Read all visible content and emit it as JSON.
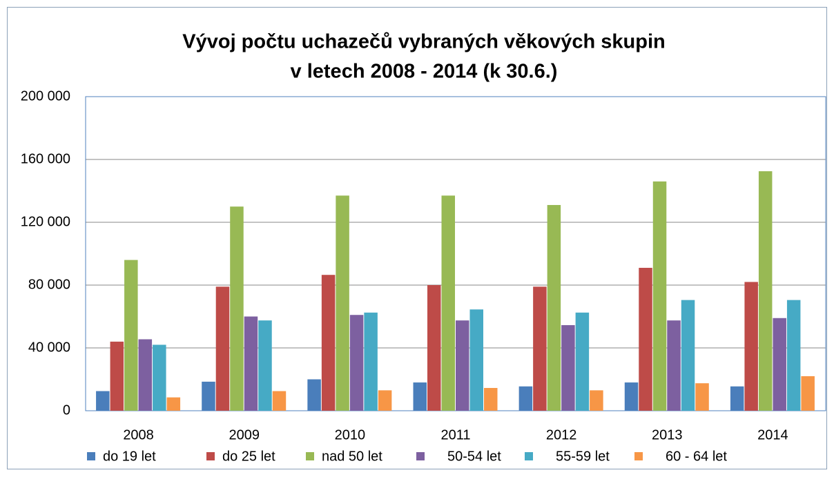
{
  "chart_data": {
    "type": "bar",
    "title": [
      "Vývoj počtu uchazečů vybraných věkových skupin",
      "v letech 2008 - 2014 (k 30.6.)"
    ],
    "categories": [
      "2008",
      "2009",
      "2010",
      "2011",
      "2012",
      "2013",
      "2014"
    ],
    "series": [
      {
        "name": "do 19 let",
        "color": "#4a7ebb",
        "values": [
          12500,
          18500,
          20000,
          18000,
          15500,
          18000,
          15500
        ]
      },
      {
        "name": "do 25 let",
        "color": "#be4b48",
        "values": [
          44000,
          79000,
          86500,
          80000,
          79000,
          91000,
          82000
        ]
      },
      {
        "name": "nad 50 let",
        "color": "#98b954",
        "values": [
          96000,
          130000,
          137000,
          137000,
          131000,
          146000,
          152500
        ]
      },
      {
        "name": "50-54 let",
        "color": "#7d60a0",
        "values": [
          45500,
          60000,
          61000,
          57500,
          54500,
          57500,
          59000
        ]
      },
      {
        "name": "55-59 let",
        "color": "#46aac5",
        "values": [
          42000,
          57500,
          62500,
          64500,
          62500,
          70500,
          70500
        ]
      },
      {
        "name": "60 - 64 let",
        "color": "#f79646",
        "values": [
          8500,
          12500,
          13000,
          14500,
          13000,
          17500,
          22000
        ]
      }
    ],
    "ylim": [
      0,
      200000
    ],
    "yticks": [
      0,
      {
        "value": 40000,
        "label": "40 000"
      },
      {
        "value": 80000,
        "label": "80 000"
      },
      {
        "value": 120000,
        "label": "120 000"
      },
      {
        "value": 160000,
        "label": "160 000"
      },
      {
        "value": 200000,
        "label": "200 000"
      }
    ],
    "grid": true,
    "legend": "bottom"
  }
}
